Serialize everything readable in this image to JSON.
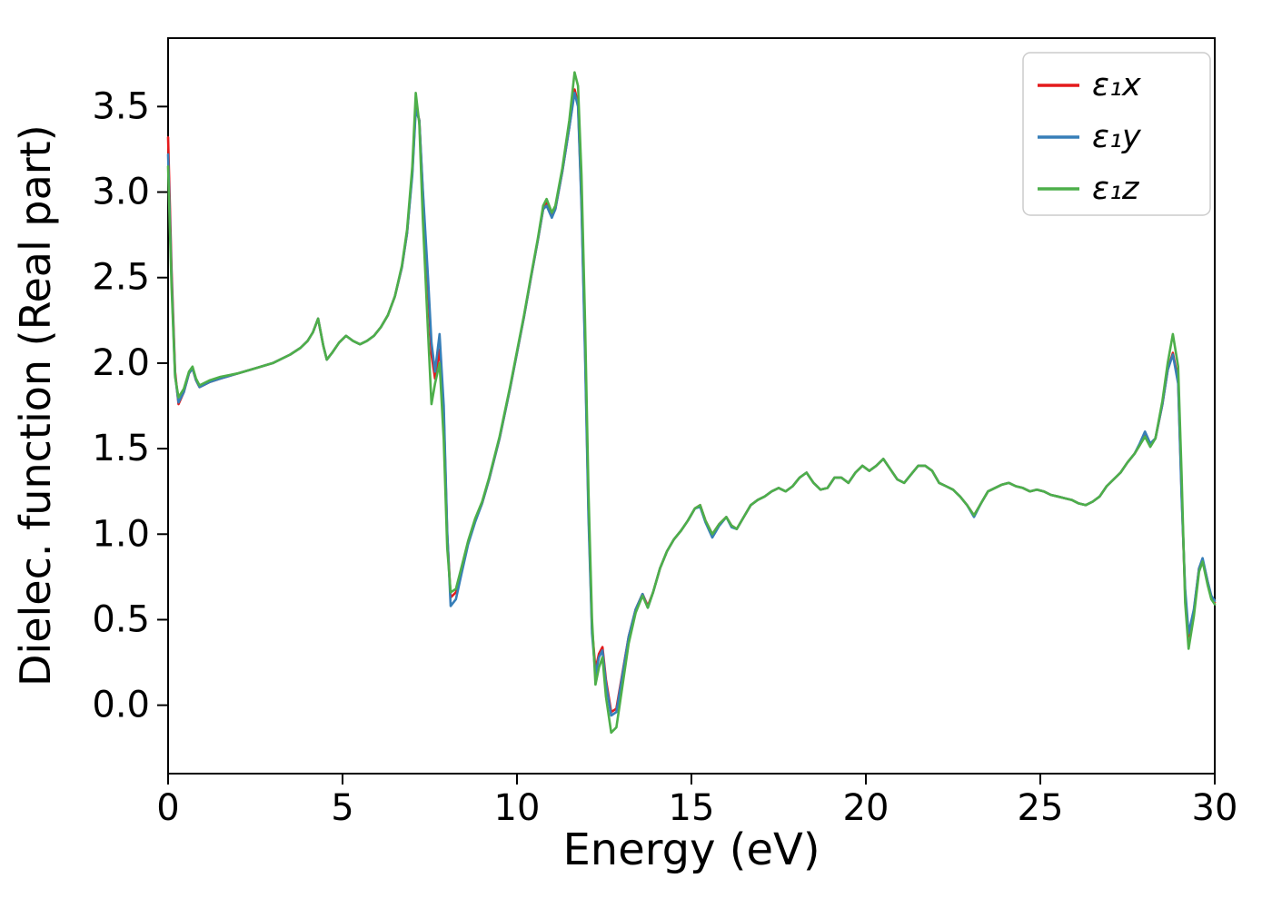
{
  "chart_data": {
    "type": "line",
    "title": "",
    "xlabel": "Energy (eV)",
    "ylabel": "Dielec. function (Real part)",
    "xlim": [
      0,
      30
    ],
    "ylim": [
      -0.4,
      3.9
    ],
    "xticks": [
      0,
      5,
      10,
      15,
      20,
      25,
      30
    ],
    "yticks": [
      0.0,
      0.5,
      1.0,
      1.5,
      2.0,
      2.5,
      3.0,
      3.5
    ],
    "grid": false,
    "legend_position": "upper right",
    "axis_color": "#000000",
    "x": [
      0,
      0.1,
      0.2,
      0.3,
      0.45,
      0.6,
      0.7,
      0.8,
      0.9,
      1.0,
      1.2,
      1.5,
      2.0,
      2.5,
      3.0,
      3.5,
      3.8,
      4.0,
      4.15,
      4.3,
      4.45,
      4.55,
      4.7,
      4.9,
      5.1,
      5.3,
      5.5,
      5.7,
      5.9,
      6.1,
      6.3,
      6.5,
      6.7,
      6.85,
      7.0,
      7.1,
      7.2,
      7.3,
      7.45,
      7.55,
      7.65,
      7.78,
      7.9,
      8.0,
      8.1,
      8.25,
      8.4,
      8.6,
      8.8,
      9.0,
      9.2,
      9.5,
      9.8,
      10.0,
      10.2,
      10.4,
      10.6,
      10.75,
      10.85,
      11.0,
      11.1,
      11.3,
      11.5,
      11.65,
      11.75,
      11.85,
      11.95,
      12.05,
      12.15,
      12.25,
      12.35,
      12.45,
      12.55,
      12.7,
      12.85,
      13.0,
      13.2,
      13.4,
      13.6,
      13.75,
      13.9,
      14.1,
      14.3,
      14.5,
      14.7,
      14.9,
      15.1,
      15.25,
      15.4,
      15.6,
      15.8,
      16.0,
      16.15,
      16.3,
      16.5,
      16.7,
      16.9,
      17.1,
      17.3,
      17.5,
      17.7,
      17.9,
      18.1,
      18.3,
      18.5,
      18.7,
      18.9,
      19.1,
      19.3,
      19.5,
      19.7,
      19.9,
      20.1,
      20.3,
      20.5,
      20.7,
      20.9,
      21.1,
      21.3,
      21.5,
      21.7,
      21.9,
      22.1,
      22.3,
      22.5,
      22.7,
      22.9,
      23.1,
      23.3,
      23.5,
      23.7,
      23.9,
      24.1,
      24.3,
      24.5,
      24.7,
      24.9,
      25.1,
      25.3,
      25.5,
      25.7,
      25.9,
      26.1,
      26.3,
      26.5,
      26.7,
      26.9,
      27.1,
      27.3,
      27.5,
      27.7,
      27.85,
      28.0,
      28.15,
      28.3,
      28.5,
      28.65,
      28.8,
      28.95,
      29.05,
      29.15,
      29.25,
      29.4,
      29.55,
      29.65,
      29.8,
      29.9,
      30.0
    ],
    "series": [
      {
        "name": "ε₁x",
        "color": "#e41a1c",
        "values": [
          3.32,
          2.55,
          1.95,
          1.76,
          1.83,
          1.94,
          1.97,
          1.9,
          1.86,
          1.87,
          1.89,
          1.91,
          1.94,
          1.97,
          2.0,
          2.05,
          2.09,
          2.13,
          2.18,
          2.26,
          2.1,
          2.02,
          2.06,
          2.12,
          2.16,
          2.13,
          2.11,
          2.13,
          2.16,
          2.21,
          2.28,
          2.39,
          2.56,
          2.76,
          3.12,
          3.5,
          3.42,
          3.0,
          2.45,
          2.05,
          1.91,
          2.08,
          1.7,
          1.0,
          0.63,
          0.66,
          0.78,
          0.95,
          1.08,
          1.18,
          1.32,
          1.56,
          1.85,
          2.06,
          2.27,
          2.5,
          2.72,
          2.9,
          2.94,
          2.86,
          2.9,
          3.12,
          3.38,
          3.6,
          3.52,
          2.95,
          2.1,
          1.15,
          0.45,
          0.21,
          0.3,
          0.34,
          0.15,
          -0.04,
          -0.02,
          0.16,
          0.4,
          0.56,
          0.65,
          0.58,
          0.66,
          0.8,
          0.9,
          0.97,
          1.02,
          1.08,
          1.15,
          1.17,
          1.08,
          1.0,
          1.06,
          1.1,
          1.05,
          1.03,
          1.1,
          1.17,
          1.2,
          1.22,
          1.25,
          1.27,
          1.25,
          1.28,
          1.33,
          1.36,
          1.3,
          1.26,
          1.27,
          1.33,
          1.33,
          1.3,
          1.36,
          1.4,
          1.37,
          1.4,
          1.44,
          1.38,
          1.32,
          1.3,
          1.35,
          1.4,
          1.4,
          1.37,
          1.3,
          1.28,
          1.26,
          1.22,
          1.17,
          1.11,
          1.18,
          1.25,
          1.27,
          1.29,
          1.3,
          1.28,
          1.27,
          1.25,
          1.26,
          1.25,
          1.23,
          1.22,
          1.21,
          1.2,
          1.18,
          1.17,
          1.19,
          1.22,
          1.28,
          1.32,
          1.36,
          1.42,
          1.47,
          1.52,
          1.58,
          1.52,
          1.56,
          1.76,
          1.96,
          2.06,
          1.9,
          1.25,
          0.65,
          0.4,
          0.55,
          0.8,
          0.85,
          0.72,
          0.63,
          0.6
        ]
      },
      {
        "name": "ε₁y",
        "color": "#377eb8",
        "values": [
          3.22,
          2.5,
          1.93,
          1.77,
          1.83,
          1.94,
          1.97,
          1.9,
          1.86,
          1.87,
          1.89,
          1.91,
          1.94,
          1.97,
          2.0,
          2.05,
          2.09,
          2.13,
          2.18,
          2.26,
          2.1,
          2.02,
          2.06,
          2.12,
          2.16,
          2.13,
          2.11,
          2.13,
          2.16,
          2.21,
          2.28,
          2.39,
          2.56,
          2.76,
          3.1,
          3.48,
          3.42,
          3.02,
          2.5,
          2.12,
          1.95,
          2.17,
          1.75,
          1.02,
          0.58,
          0.62,
          0.76,
          0.94,
          1.07,
          1.18,
          1.32,
          1.56,
          1.85,
          2.06,
          2.27,
          2.5,
          2.72,
          2.9,
          2.92,
          2.85,
          2.9,
          3.12,
          3.38,
          3.58,
          3.5,
          2.92,
          2.05,
          1.1,
          0.42,
          0.18,
          0.28,
          0.32,
          0.13,
          -0.06,
          -0.04,
          0.15,
          0.4,
          0.56,
          0.65,
          0.57,
          0.66,
          0.8,
          0.9,
          0.97,
          1.02,
          1.08,
          1.15,
          1.16,
          1.07,
          0.98,
          1.05,
          1.1,
          1.04,
          1.03,
          1.1,
          1.17,
          1.2,
          1.22,
          1.25,
          1.27,
          1.25,
          1.28,
          1.33,
          1.36,
          1.3,
          1.26,
          1.27,
          1.33,
          1.33,
          1.3,
          1.36,
          1.4,
          1.37,
          1.4,
          1.44,
          1.38,
          1.32,
          1.3,
          1.35,
          1.4,
          1.4,
          1.37,
          1.3,
          1.28,
          1.26,
          1.22,
          1.17,
          1.1,
          1.18,
          1.25,
          1.27,
          1.29,
          1.3,
          1.28,
          1.27,
          1.25,
          1.26,
          1.25,
          1.23,
          1.22,
          1.21,
          1.2,
          1.18,
          1.17,
          1.19,
          1.22,
          1.28,
          1.32,
          1.36,
          1.42,
          1.47,
          1.53,
          1.6,
          1.53,
          1.56,
          1.76,
          1.96,
          2.05,
          1.88,
          1.22,
          0.68,
          0.42,
          0.56,
          0.8,
          0.86,
          0.72,
          0.64,
          0.61
        ]
      },
      {
        "name": "ε₁z",
        "color": "#4daf4a",
        "values": [
          3.15,
          2.45,
          1.92,
          1.8,
          1.85,
          1.95,
          1.98,
          1.91,
          1.87,
          1.88,
          1.9,
          1.92,
          1.94,
          1.97,
          2.0,
          2.05,
          2.09,
          2.13,
          2.18,
          2.26,
          2.1,
          2.02,
          2.06,
          2.12,
          2.16,
          2.13,
          2.11,
          2.13,
          2.16,
          2.21,
          2.28,
          2.39,
          2.57,
          2.78,
          3.15,
          3.58,
          3.4,
          2.85,
          2.18,
          1.76,
          1.88,
          2.0,
          1.55,
          0.92,
          0.66,
          0.68,
          0.8,
          0.96,
          1.09,
          1.19,
          1.33,
          1.57,
          1.86,
          2.07,
          2.28,
          2.51,
          2.73,
          2.92,
          2.96,
          2.88,
          2.92,
          3.14,
          3.42,
          3.7,
          3.62,
          3.1,
          2.25,
          1.25,
          0.5,
          0.12,
          0.22,
          0.28,
          0.05,
          -0.16,
          -0.13,
          0.08,
          0.36,
          0.54,
          0.64,
          0.57,
          0.66,
          0.8,
          0.9,
          0.97,
          1.02,
          1.08,
          1.15,
          1.17,
          1.08,
          1.0,
          1.06,
          1.1,
          1.05,
          1.03,
          1.1,
          1.17,
          1.2,
          1.22,
          1.25,
          1.27,
          1.25,
          1.28,
          1.33,
          1.36,
          1.3,
          1.26,
          1.27,
          1.33,
          1.33,
          1.3,
          1.36,
          1.4,
          1.37,
          1.4,
          1.44,
          1.38,
          1.32,
          1.3,
          1.35,
          1.4,
          1.4,
          1.37,
          1.3,
          1.28,
          1.26,
          1.22,
          1.17,
          1.11,
          1.18,
          1.25,
          1.27,
          1.29,
          1.3,
          1.28,
          1.27,
          1.25,
          1.26,
          1.25,
          1.23,
          1.22,
          1.21,
          1.2,
          1.18,
          1.17,
          1.19,
          1.22,
          1.28,
          1.32,
          1.36,
          1.42,
          1.47,
          1.52,
          1.57,
          1.51,
          1.56,
          1.78,
          2.0,
          2.17,
          1.98,
          1.35,
          0.6,
          0.33,
          0.52,
          0.78,
          0.84,
          0.7,
          0.62,
          0.59
        ]
      }
    ]
  }
}
